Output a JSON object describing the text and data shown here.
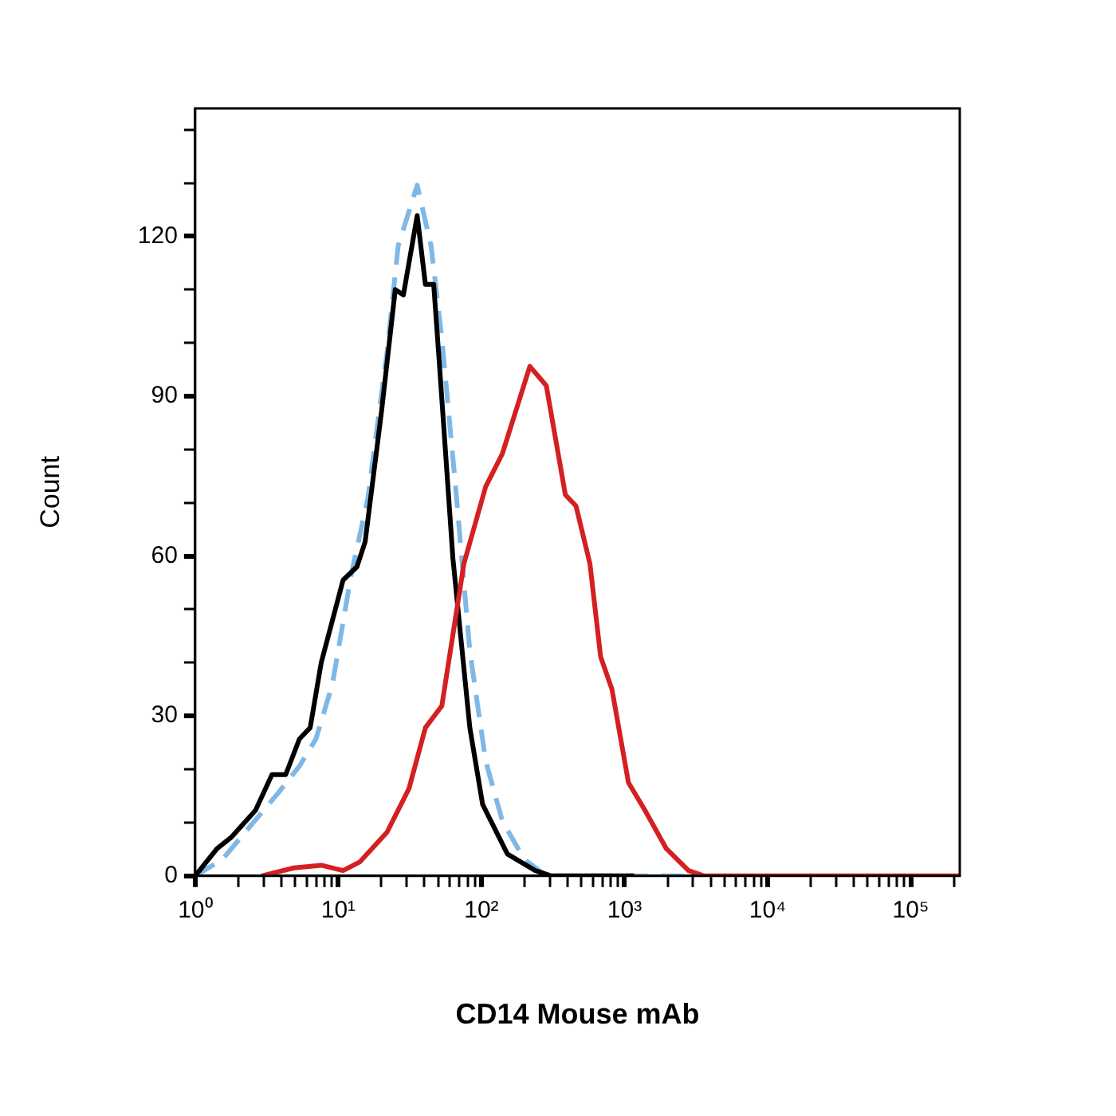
{
  "chart_data": {
    "type": "line",
    "xlabel": "CD14 Mouse mAb",
    "ylabel": "Count",
    "log": "x",
    "grid": false,
    "legend": false,
    "marker": "none",
    "xlim": [
      1,
      220000
    ],
    "ylim": [
      0,
      144
    ],
    "xticks": [
      {
        "value": 1,
        "label": "10⁰"
      },
      {
        "value": 2,
        "label": null
      },
      {
        "value": 3,
        "label": null
      },
      {
        "value": 4,
        "label": null
      },
      {
        "value": 5,
        "label": null
      },
      {
        "value": 6,
        "label": null
      },
      {
        "value": 7,
        "label": null
      },
      {
        "value": 8,
        "label": null
      },
      {
        "value": 9,
        "label": null
      },
      {
        "value": 10,
        "label": "10¹"
      },
      {
        "value": 20,
        "label": null
      },
      {
        "value": 30,
        "label": null
      },
      {
        "value": 40,
        "label": null
      },
      {
        "value": 50,
        "label": null
      },
      {
        "value": 60,
        "label": null
      },
      {
        "value": 70,
        "label": null
      },
      {
        "value": 80,
        "label": null
      },
      {
        "value": 90,
        "label": null
      },
      {
        "value": 100,
        "label": "10²"
      },
      {
        "value": 200,
        "label": null
      },
      {
        "value": 300,
        "label": null
      },
      {
        "value": 400,
        "label": null
      },
      {
        "value": 500,
        "label": null
      },
      {
        "value": 600,
        "label": null
      },
      {
        "value": 700,
        "label": null
      },
      {
        "value": 800,
        "label": null
      },
      {
        "value": 900,
        "label": null
      },
      {
        "value": 1000,
        "label": "10³"
      },
      {
        "value": 2000,
        "label": null
      },
      {
        "value": 3000,
        "label": null
      },
      {
        "value": 4000,
        "label": null
      },
      {
        "value": 5000,
        "label": null
      },
      {
        "value": 6000,
        "label": null
      },
      {
        "value": 7000,
        "label": null
      },
      {
        "value": 8000,
        "label": null
      },
      {
        "value": 9000,
        "label": null
      },
      {
        "value": 10000,
        "label": "10⁴"
      },
      {
        "value": 20000,
        "label": null
      },
      {
        "value": 30000,
        "label": null
      },
      {
        "value": 40000,
        "label": null
      },
      {
        "value": 50000,
        "label": null
      },
      {
        "value": 60000,
        "label": null
      },
      {
        "value": 70000,
        "label": null
      },
      {
        "value": 80000,
        "label": null
      },
      {
        "value": 90000,
        "label": null
      },
      {
        "value": 100000,
        "label": "10⁵"
      },
      {
        "value": 200000,
        "label": null
      }
    ],
    "yticks": [
      0,
      {
        "value": 10,
        "label": null
      },
      {
        "value": 20,
        "label": null
      },
      30,
      {
        "value": 40,
        "label": null
      },
      {
        "value": 50,
        "label": null
      },
      60,
      {
        "value": 70,
        "label": null
      },
      {
        "value": 80,
        "label": null
      },
      90,
      {
        "value": 100,
        "label": null
      },
      {
        "value": 110,
        "label": null
      },
      120,
      {
        "value": 130,
        "label": null
      },
      {
        "value": 140,
        "label": null
      }
    ],
    "series": [
      {
        "color": "#d42020",
        "line_style": "solid",
        "x": [
          2.9,
          4.9,
          7.6,
          10.8,
          14.1,
          21.9,
          31.2,
          40.6,
          52.9,
          75.5,
          107,
          140,
          218,
          284,
          386,
          458,
          573,
          681,
          817,
          1065,
          1390,
          1960,
          2800,
          3600,
          220000
        ],
        "values": [
          0,
          1.5,
          2,
          1,
          2.6,
          8.2,
          16.4,
          27.8,
          31.9,
          58.6,
          73,
          79.2,
          95.6,
          92,
          71.5,
          69.4,
          58.6,
          41.1,
          35,
          17.5,
          12.3,
          5.1,
          1,
          0,
          0
        ]
      },
      {
        "color": "#000000",
        "line_style": "solid",
        "x": [
          1,
          1.42,
          1.78,
          2.64,
          3.44,
          4.29,
          5.35,
          6.36,
          7.6,
          10.8,
          13.5,
          15.4,
          20.1,
          25,
          28.5,
          35.6,
          40.6,
          46.4,
          50.7,
          63.2,
          83,
          102,
          152,
          238,
          308,
          1170
        ],
        "values": [
          0,
          5.1,
          7.2,
          12.3,
          19,
          19,
          25.7,
          27.8,
          40,
          55.5,
          58,
          62.7,
          87.4,
          110,
          109,
          123.9,
          111,
          111,
          96.6,
          59.6,
          27.8,
          13.4,
          4.1,
          1,
          0,
          0
        ]
      },
      {
        "color": "#7fb8e6",
        "line_style": "dashed",
        "x": [
          1,
          1.55,
          2.42,
          3.76,
          5.35,
          6.98,
          9.1,
          12.3,
          16.1,
          22,
          26.2,
          35.6,
          44.5,
          52.9,
          66,
          83,
          107,
          140,
          199,
          284,
          2600
        ],
        "values": [
          0,
          3.1,
          9.3,
          15.4,
          20.6,
          25.7,
          36,
          56.5,
          70.9,
          98.7,
          118.2,
          129.6,
          118.2,
          100.8,
          73,
          42.2,
          21.6,
          10.3,
          3.1,
          0,
          0
        ]
      }
    ]
  }
}
